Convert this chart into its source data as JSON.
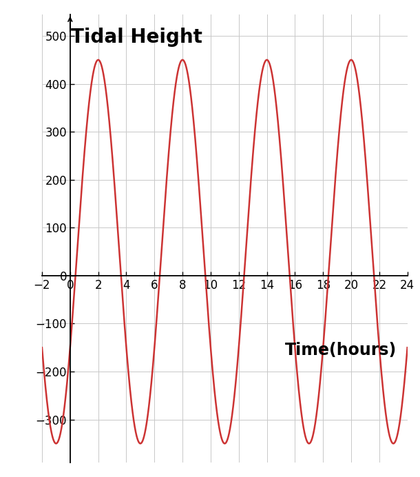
{
  "title": "Tidal Height",
  "xlabel": "Time(hours)",
  "xlim": [
    -2,
    24
  ],
  "ylim": [
    -390,
    545
  ],
  "xticks": [
    -2,
    0,
    2,
    4,
    6,
    8,
    10,
    12,
    14,
    16,
    18,
    20,
    22,
    24
  ],
  "yticks": [
    -300,
    -200,
    -100,
    0,
    100,
    200,
    300,
    400,
    500
  ],
  "amplitude": 400,
  "period": 6.0,
  "phase": 0.5,
  "v_shift": 50,
  "line_color": "#cc3333",
  "line_width": 1.8,
  "background_color": "#ffffff",
  "grid_color": "#c8c8c8",
  "grid_linewidth": 0.7,
  "title_fontsize": 20,
  "label_fontsize": 17,
  "tick_fontsize": 12
}
